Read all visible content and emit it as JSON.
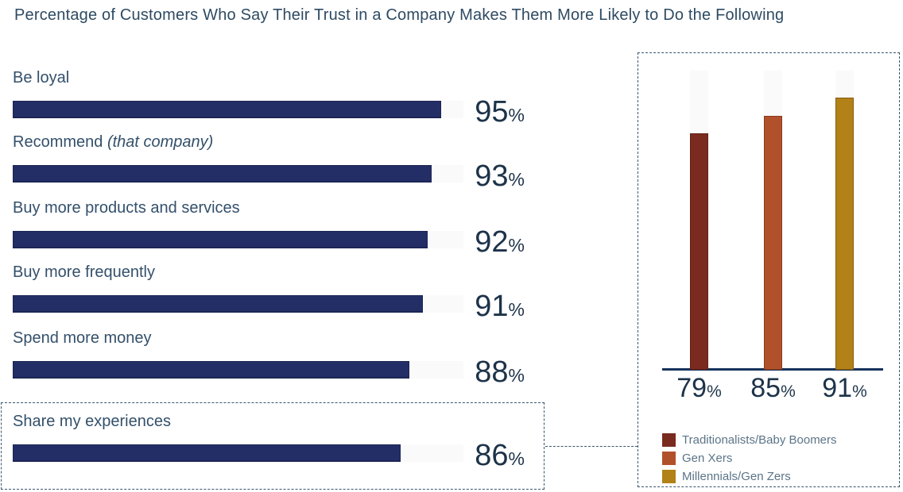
{
  "title": "Percentage of Customers Who Say Their Trust in a Company Makes Them More Likely to Do the Following",
  "colors": {
    "hbar_fill": "#242e66",
    "bar_track": "#fafafa",
    "axis": "#16325c",
    "title_text": "#2e4a62",
    "label_text": "#33506b",
    "value_text": "#1d3349",
    "legend_text": "#5b7487",
    "callout_border": "#3a566e"
  },
  "chart_data": [
    {
      "type": "bar",
      "orientation": "horizontal",
      "title": "Percentage of Customers Who Say Their Trust in a Company Makes Them More Likely to Do the Following",
      "xlim": [
        0,
        100
      ],
      "unit": "%",
      "bar_color": "#242e66",
      "grid": false,
      "bars": [
        {
          "label": "Be loyal",
          "label_italic": "",
          "value": 95
        },
        {
          "label": "Recommend",
          "label_italic": "(that company)",
          "value": 93
        },
        {
          "label": "Buy more products and services",
          "label_italic": "",
          "value": 92
        },
        {
          "label": "Buy more frequently",
          "label_italic": "",
          "value": 91
        },
        {
          "label": "Spend more money",
          "label_italic": "",
          "value": 88
        },
        {
          "label": "Share my experiences",
          "label_italic": "",
          "value": 86,
          "highlighted": true
        }
      ],
      "highlight": {
        "category": "Share my experiences",
        "style": "dashed-outline",
        "connects_to": "generation-breakdown"
      }
    },
    {
      "type": "bar",
      "orientation": "vertical",
      "id": "generation-breakdown",
      "ylim": [
        0,
        100
      ],
      "unit": "%",
      "categories": [
        "Traditionalists/Baby Boomers",
        "Gen Xers",
        "Millennials/Gen Zers"
      ],
      "values": [
        79,
        85,
        91
      ],
      "colors": [
        "#7a2a1e",
        "#b1512b",
        "#b28117"
      ],
      "legend_position": "bottom-left",
      "grid": false
    }
  ]
}
